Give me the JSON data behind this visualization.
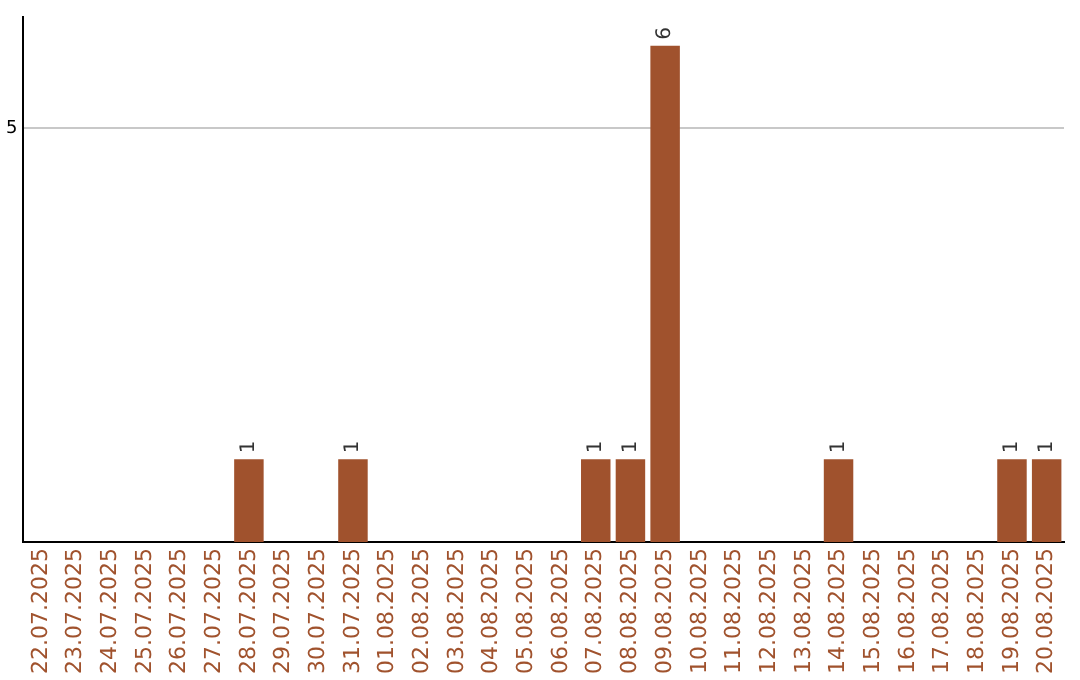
{
  "chart_data": {
    "type": "bar",
    "categories": [
      "22.07.2025",
      "23.07.2025",
      "24.07.2025",
      "25.07.2025",
      "26.07.2025",
      "27.07.2025",
      "28.07.2025",
      "29.07.2025",
      "30.07.2025",
      "31.07.2025",
      "01.08.2025",
      "02.08.2025",
      "03.08.2025",
      "04.08.2025",
      "05.08.2025",
      "06.08.2025",
      "07.08.2025",
      "08.08.2025",
      "09.08.2025",
      "10.08.2025",
      "11.08.2025",
      "12.08.2025",
      "13.08.2025",
      "14.08.2025",
      "15.08.2025",
      "16.08.2025",
      "17.08.2025",
      "18.08.2025",
      "19.08.2025",
      "20.08.2025"
    ],
    "values": [
      0,
      0,
      0,
      0,
      0,
      0,
      1,
      0,
      0,
      1,
      0,
      0,
      0,
      0,
      0,
      0,
      1,
      1,
      6,
      0,
      0,
      0,
      0,
      1,
      0,
      0,
      0,
      0,
      1,
      1
    ],
    "value_labels": [
      null,
      null,
      null,
      null,
      null,
      null,
      "1",
      null,
      null,
      "1",
      null,
      null,
      null,
      null,
      null,
      null,
      "1",
      "1",
      "6",
      null,
      null,
      null,
      null,
      "1",
      null,
      null,
      null,
      null,
      "1",
      "1"
    ],
    "color": "#a0522d",
    "ylim": [
      0,
      6.35
    ],
    "yticks": [
      5
    ],
    "grid": "y",
    "legend": false
  }
}
